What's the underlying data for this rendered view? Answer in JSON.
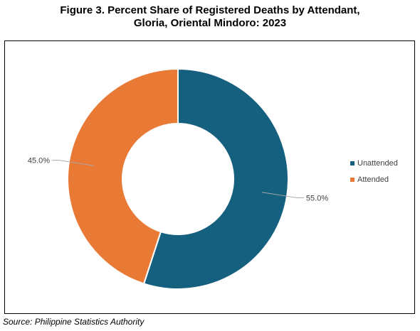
{
  "chart_data": {
    "type": "pie",
    "donut": true,
    "title_line1": "Figure 3. Percent Share of Registered Deaths by Attendant,",
    "title_line2": "Gloria, Oriental Mindoro: 2023",
    "slices": [
      {
        "name": "Unattended",
        "value": 55.0,
        "label": "55.0%",
        "color": "#16607f"
      },
      {
        "name": "Attended",
        "value": 45.0,
        "label": "45.0%",
        "color": "#e97a36"
      }
    ],
    "legend_position": "right"
  },
  "source": "Source: Philippine Statistics Authority"
}
